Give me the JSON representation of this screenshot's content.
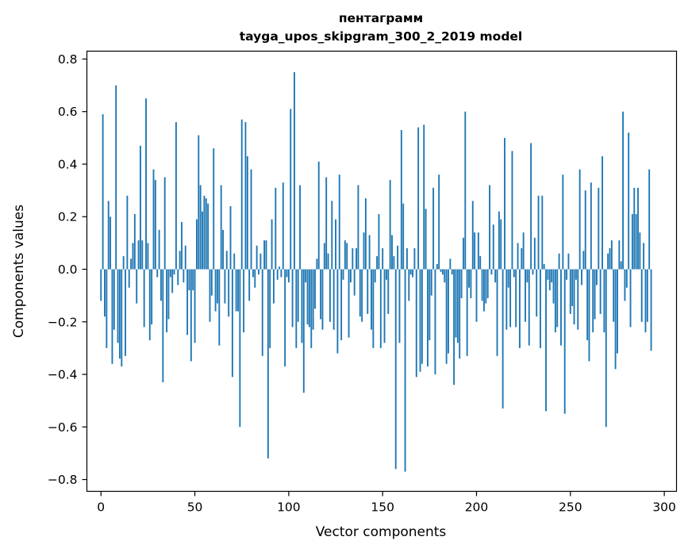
{
  "chart_data": {
    "type": "bar",
    "title": "пентаграмм",
    "subtitle": "tayga_upos_skipgram_300_2_2019 model",
    "xlabel": "Vector components",
    "ylabel": "Components values",
    "xlim": [
      -7.5,
      306.5
    ],
    "ylim": [
      -0.845,
      0.83
    ],
    "x_ticks": [
      0,
      50,
      100,
      150,
      200,
      250,
      300
    ],
    "x_tick_labels": [
      "0",
      "50",
      "100",
      "150",
      "200",
      "250",
      "300"
    ],
    "y_ticks": [
      0.8,
      0.6,
      0.4,
      0.2,
      0.0,
      -0.2,
      -0.4,
      -0.6,
      -0.8
    ],
    "y_tick_labels": [
      "0.8",
      "0.6",
      "0.4",
      "0.2",
      "0.0",
      "−0.2",
      "−0.4",
      "−0.6",
      "−0.8"
    ],
    "grid": false,
    "bar_color": "#1f77b4",
    "values": [
      -0.12,
      0.59,
      -0.18,
      -0.3,
      0.26,
      0.2,
      -0.36,
      -0.23,
      0.7,
      -0.28,
      -0.34,
      -0.37,
      0.05,
      -0.33,
      0.28,
      -0.07,
      0.04,
      0.1,
      0.21,
      -0.13,
      0.11,
      0.47,
      0.11,
      -0.22,
      0.65,
      0.1,
      -0.27,
      -0.21,
      0.38,
      0.34,
      -0.03,
      0.15,
      -0.12,
      -0.43,
      0.35,
      -0.24,
      -0.19,
      -0.03,
      -0.09,
      -0.02,
      0.56,
      -0.06,
      0.07,
      0.18,
      -0.05,
      0.09,
      -0.25,
      -0.08,
      -0.35,
      -0.08,
      -0.28,
      0.19,
      0.51,
      0.32,
      0.22,
      0.28,
      0.27,
      0.25,
      -0.2,
      -0.1,
      0.46,
      -0.16,
      -0.13,
      -0.29,
      0.32,
      0.15,
      -0.13,
      0.07,
      -0.18,
      0.24,
      -0.41,
      0.06,
      -0.16,
      -0.16,
      -0.6,
      0.57,
      -0.24,
      0.56,
      0.43,
      -0.12,
      0.38,
      -0.03,
      -0.07,
      0.09,
      -0.02,
      0.06,
      -0.33,
      0.11,
      0.11,
      -0.72,
      -0.3,
      0.19,
      -0.13,
      0.31,
      -0.04,
      0.01,
      -0.03,
      0.33,
      -0.37,
      -0.03,
      -0.05,
      0.61,
      -0.22,
      0.75,
      -0.3,
      -0.2,
      0.32,
      -0.28,
      -0.47,
      -0.05,
      -0.21,
      -0.22,
      -0.3,
      -0.23,
      -0.15,
      0.04,
      0.41,
      -0.19,
      -0.23,
      0.1,
      0.35,
      0.06,
      -0.2,
      0.26,
      -0.23,
      0.19,
      -0.32,
      0.36,
      -0.27,
      -0.04,
      0.11,
      0.1,
      -0.26,
      -0.05,
      0.08,
      -0.1,
      0.08,
      0.32,
      -0.18,
      -0.2,
      0.14,
      0.27,
      -0.17,
      0.13,
      -0.23,
      -0.3,
      -0.05,
      0.05,
      0.21,
      -0.3,
      0.08,
      -0.28,
      -0.04,
      -0.17,
      0.34,
      0.13,
      0.05,
      -0.76,
      0.09,
      -0.28,
      0.53,
      0.25,
      -0.77,
      0.08,
      -0.12,
      -0.02,
      -0.03,
      0.08,
      -0.41,
      0.54,
      -0.39,
      -0.36,
      0.55,
      0.23,
      -0.37,
      -0.27,
      -0.1,
      0.31,
      -0.4,
      0.02,
      0.36,
      -0.01,
      -0.02,
      -0.05,
      -0.36,
      -0.32,
      0.04,
      -0.02,
      -0.44,
      -0.26,
      -0.28,
      -0.34,
      -0.11,
      0.12,
      0.6,
      -0.33,
      -0.07,
      -0.11,
      0.26,
      0.14,
      -0.2,
      0.14,
      0.05,
      -0.12,
      -0.16,
      -0.13,
      -0.11,
      0.32,
      -0.02,
      0.17,
      -0.05,
      -0.33,
      0.22,
      0.19,
      -0.53,
      0.5,
      -0.23,
      -0.07,
      -0.22,
      0.45,
      -0.03,
      -0.22,
      0.1,
      -0.3,
      0.08,
      0.14,
      -0.2,
      -0.05,
      -0.29,
      0.48,
      -0.02,
      0.12,
      -0.18,
      0.28,
      -0.3,
      0.28,
      0.02,
      -0.54,
      -0.04,
      -0.08,
      -0.05,
      -0.13,
      -0.24,
      -0.22,
      0.06,
      -0.29,
      0.36,
      -0.55,
      -0.04,
      0.06,
      -0.17,
      -0.14,
      -0.21,
      -0.04,
      -0.23,
      0.38,
      -0.06,
      0.07,
      0.3,
      -0.27,
      -0.35,
      0.33,
      -0.24,
      -0.19,
      -0.06,
      0.31,
      -0.17,
      0.43,
      -0.24,
      -0.6,
      0.06,
      0.08,
      0.11,
      -0.2,
      -0.38,
      -0.32,
      0.11,
      0.03,
      0.6,
      -0.12,
      -0.07,
      0.52,
      -0.22,
      0.21,
      0.31,
      0.21,
      0.31,
      0.14,
      -0.2,
      0.1,
      -0.24,
      -0.2,
      0.38,
      -0.31
    ]
  }
}
